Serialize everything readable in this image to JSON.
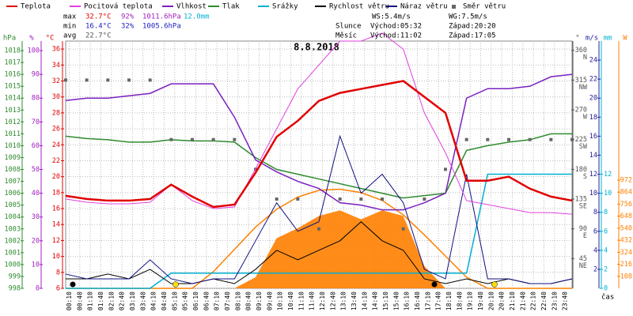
{
  "chart_data": {
    "type": "line",
    "title": "8.8.2018",
    "x_label": "čas",
    "xlim": [
      0,
      1440
    ],
    "x": [
      0,
      60,
      120,
      180,
      240,
      300,
      360,
      420,
      480,
      540,
      600,
      660,
      720,
      780,
      840,
      900,
      960,
      1020,
      1080,
      1140,
      1200,
      1260,
      1320,
      1380,
      1440
    ],
    "xticks": [
      {
        "value": 10,
        "label": "00:10"
      },
      {
        "value": 40,
        "label": "00:40"
      },
      {
        "value": 70,
        "label": "01:10"
      },
      {
        "value": 100,
        "label": "01:40"
      },
      {
        "value": 130,
        "label": "02:10"
      },
      {
        "value": 160,
        "label": "02:40"
      },
      {
        "value": 190,
        "label": "03:10"
      },
      {
        "value": 220,
        "label": "03:40"
      },
      {
        "value": 250,
        "label": "04:10"
      },
      {
        "value": 280,
        "label": "04:40"
      },
      {
        "value": 310,
        "label": "05:10"
      },
      {
        "value": 340,
        "label": "05:40"
      },
      {
        "value": 370,
        "label": "06:10"
      },
      {
        "value": 400,
        "label": "06:40"
      },
      {
        "value": 430,
        "label": "07:10"
      },
      {
        "value": 460,
        "label": "07:40"
      },
      {
        "value": 490,
        "label": "08:10"
      },
      {
        "value": 520,
        "label": "08:40"
      },
      {
        "value": 550,
        "label": "09:10"
      },
      {
        "value": 580,
        "label": "09:40"
      },
      {
        "value": 610,
        "label": "10:10"
      },
      {
        "value": 640,
        "label": "10:40"
      },
      {
        "value": 670,
        "label": "11:10"
      },
      {
        "value": 700,
        "label": "11:40"
      },
      {
        "value": 730,
        "label": "12:10"
      },
      {
        "value": 760,
        "label": "12:40"
      },
      {
        "value": 790,
        "label": "13:10"
      },
      {
        "value": 820,
        "label": "13:40"
      },
      {
        "value": 850,
        "label": "14:10"
      },
      {
        "value": 880,
        "label": "14:40"
      },
      {
        "value": 910,
        "label": "15:10"
      },
      {
        "value": 940,
        "label": "15:40"
      },
      {
        "value": 970,
        "label": "16:10"
      },
      {
        "value": 1000,
        "label": "16:40"
      },
      {
        "value": 1030,
        "label": "17:10"
      },
      {
        "value": 1060,
        "label": "17:40"
      },
      {
        "value": 1090,
        "label": "18:10"
      },
      {
        "value": 1120,
        "label": "18:40"
      },
      {
        "value": 1150,
        "label": "19:10"
      },
      {
        "value": 1180,
        "label": "19:40"
      },
      {
        "value": 1210,
        "label": "20:10"
      },
      {
        "value": 1240,
        "label": "20:40"
      },
      {
        "value": 1270,
        "label": "21:10"
      },
      {
        "value": 1300,
        "label": "21:40"
      },
      {
        "value": 1330,
        "label": "22:10"
      },
      {
        "value": 1360,
        "label": "22:40"
      },
      {
        "value": 1390,
        "label": "23:10"
      },
      {
        "value": 1420,
        "label": "23:40"
      }
    ],
    "axes": [
      {
        "id": "hpa",
        "label": "hPa",
        "color": "#2e8b2e",
        "lim": [
          998,
          1018.8
        ],
        "ticks": [
          998,
          999,
          1000,
          1001,
          1002,
          1003,
          1004,
          1005,
          1006,
          1007,
          1008,
          1009,
          1010,
          1011,
          1012,
          1013,
          1014,
          1015,
          1016,
          1017,
          1018
        ]
      },
      {
        "id": "pct",
        "label": "%",
        "color": "#a020c0",
        "lim": [
          0,
          104
        ],
        "ticks": [
          0,
          10,
          20,
          30,
          40,
          50,
          60,
          70,
          80,
          90,
          100
        ]
      },
      {
        "id": "temp",
        "label": "°C",
        "color": "#e00000",
        "lim": [
          6,
          37
        ],
        "ticks": [
          6,
          8,
          10,
          12,
          14,
          16,
          18,
          20,
          22,
          24,
          26,
          28,
          30,
          32,
          34,
          36
        ]
      },
      {
        "id": "dir",
        "label": "°",
        "color": "#555555",
        "lim": [
          0,
          374
        ],
        "ticks": [
          45,
          90,
          135,
          180,
          225,
          270,
          315,
          360
        ],
        "tick_letters": [
          "NE",
          "E",
          "SE",
          "S",
          "SW",
          "W",
          "NW",
          "N"
        ]
      },
      {
        "id": "ms",
        "label": "m/s",
        "color": "#2020a0",
        "lim": [
          0,
          26
        ],
        "ticks": [
          2,
          4,
          6,
          8,
          10,
          12,
          14,
          16,
          18,
          20,
          22,
          24
        ]
      },
      {
        "id": "mm",
        "label": "mm",
        "color": "#00b0d0",
        "lim": [
          0,
          26
        ],
        "ticks": [
          0,
          2,
          4,
          6,
          8,
          10,
          12
        ]
      },
      {
        "id": "wm2",
        "label": "W",
        "color": "#ff8000",
        "lim": [
          0,
          2220
        ],
        "ticks": [
          108,
          216,
          324,
          432,
          540,
          648,
          756,
          864,
          972
        ]
      }
    ],
    "series": [
      {
        "name": "Teplota",
        "color": "#e00000",
        "axis": "temp",
        "width": 2.5,
        "values": [
          17.6,
          17.2,
          17.0,
          17.0,
          17.2,
          19.0,
          17.5,
          16.2,
          16.5,
          20.5,
          25,
          27,
          29.5,
          30.5,
          31,
          31.5,
          32,
          30,
          28,
          19.5,
          19.5,
          20,
          18.5,
          17.5,
          17
        ]
      },
      {
        "name": "Pocitová teplota",
        "color": "#e040e0",
        "axis": "temp",
        "width": 1,
        "values": [
          17.2,
          16.8,
          16.6,
          16.6,
          16.8,
          19.0,
          17.0,
          16.0,
          16.2,
          21,
          26,
          31,
          34,
          37,
          37,
          38,
          36,
          28,
          23,
          17,
          16.5,
          16,
          15.5,
          15.5,
          15.3
        ]
      },
      {
        "name": "Vlhkost",
        "color": "#7a20c0",
        "axis": "pct",
        "width": 1.5,
        "values": [
          79,
          80,
          80,
          81,
          82,
          86,
          86,
          86,
          72,
          54,
          49,
          45,
          42,
          36,
          35,
          33,
          33,
          36,
          40,
          80,
          84,
          84,
          85,
          89,
          90
        ]
      },
      {
        "name": "Tlak",
        "color": "#2e8b2e",
        "axis": "hpa",
        "width": 1.5,
        "values": [
          1010.8,
          1010.6,
          1010.5,
          1010.3,
          1010.3,
          1010.5,
          1010.4,
          1010.4,
          1010.3,
          1009,
          1008,
          1007.6,
          1007.2,
          1006.8,
          1006.4,
          1006,
          1005.6,
          1005.8,
          1006,
          1009.6,
          1010,
          1010.3,
          1010.5,
          1011,
          1011
        ]
      },
      {
        "name": "Srážky",
        "color": "#00b0d0",
        "axis": "mm",
        "width": 1.5,
        "values": [
          0,
          0,
          0,
          0,
          0,
          1.6,
          1.6,
          1.6,
          1.6,
          1.6,
          1.6,
          1.6,
          1.6,
          1.6,
          1.6,
          1.6,
          1.6,
          1.6,
          1.6,
          1.6,
          12,
          12,
          12,
          12,
          12
        ]
      },
      {
        "name": "Rychlost větru",
        "color": "#000000",
        "axis": "ms",
        "width": 1,
        "values": [
          1,
          1,
          1.5,
          1,
          2,
          0.5,
          0.5,
          1,
          0.5,
          2,
          4,
          3,
          4,
          5,
          7,
          5,
          4,
          1,
          0.5,
          1,
          0.5,
          1,
          0.5,
          0.5,
          1
        ]
      },
      {
        "name": "Náraz větru",
        "color": "#101080",
        "axis": "ms",
        "width": 1,
        "values": [
          1.5,
          1,
          1,
          1,
          3,
          1,
          0.5,
          1,
          1,
          5,
          9,
          6,
          7,
          16,
          10,
          12,
          9,
          2,
          1,
          12,
          1,
          1,
          0.5,
          0.5,
          1
        ]
      },
      {
        "name": "Směr větru",
        "color": "#666666",
        "axis": "dir",
        "marker": "square",
        "values": [
          315,
          315,
          315,
          315,
          315,
          225,
          225,
          225,
          225,
          180,
          135,
          135,
          90,
          135,
          135,
          135,
          90,
          135,
          180,
          225,
          225,
          225,
          225,
          225,
          225
        ]
      }
    ],
    "solar": {
      "color": "#ff8000",
      "axis": "wm2",
      "values": [
        0,
        0,
        0,
        0,
        0,
        0,
        0,
        0,
        0,
        100,
        450,
        540,
        650,
        700,
        620,
        700,
        650,
        200,
        0,
        0,
        0,
        0,
        0,
        0,
        0
      ]
    },
    "solar_theoretical": {
      "color": "#ff8000",
      "axis": "wm2",
      "values": [
        0,
        0,
        0,
        0,
        0,
        0,
        0,
        150,
        350,
        550,
        710,
        820,
        880,
        890,
        860,
        790,
        660,
        480,
        290,
        100,
        0,
        0,
        0,
        0,
        0
      ]
    },
    "stats": {
      "max": {
        "label": "max",
        "values": [
          "32.7°C",
          "92%",
          "1011.6hPa",
          "12.0mm"
        ]
      },
      "min": {
        "label": "min",
        "values": [
          "16.4°C",
          "32%",
          "1005.6hPa"
        ]
      },
      "avg": {
        "label": "avg",
        "values": [
          "22.7°C"
        ]
      }
    },
    "info": {
      "ws": "WS:5.4m/s",
      "wg": "WG:7.5m/s",
      "sun": [
        "Slunce",
        "Východ:05:32",
        "Západ:20:20"
      ],
      "moon": [
        "Měsíc",
        "Východ:11:02",
        "Západ:17:05"
      ]
    }
  }
}
